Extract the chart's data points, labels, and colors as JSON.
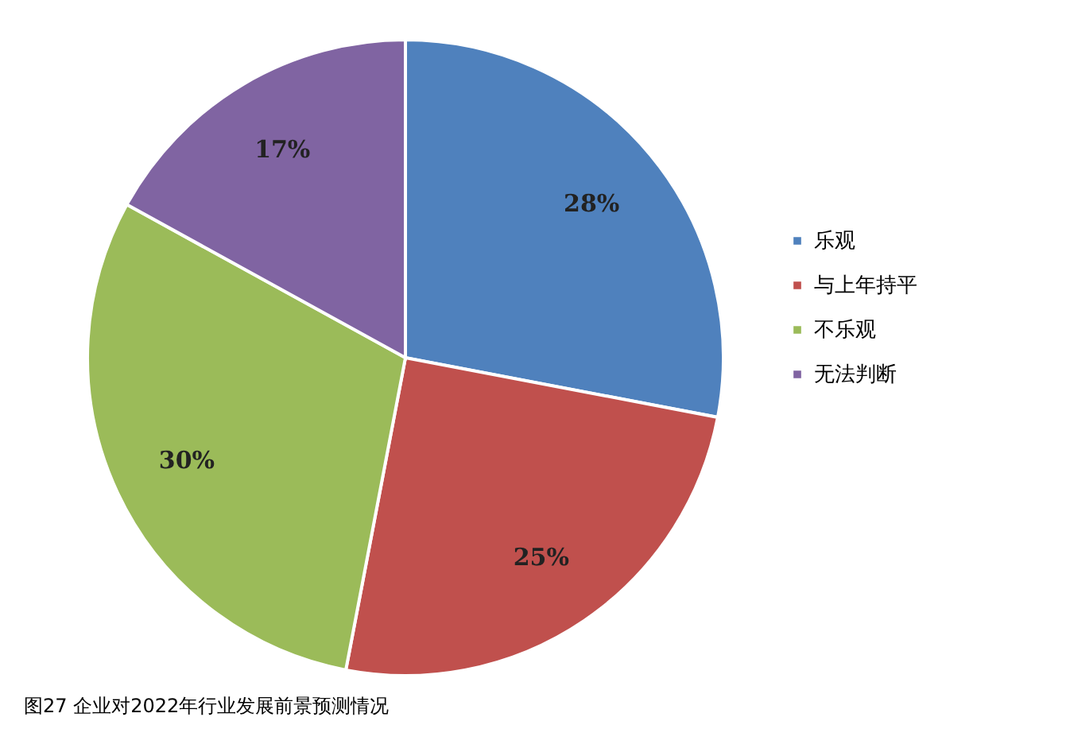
{
  "chart_data": {
    "type": "pie",
    "categories": [
      "乐观",
      "与上年持平",
      "不乐观",
      "无法判断"
    ],
    "values": [
      28,
      25,
      30,
      17
    ],
    "colors": [
      "#4f81bd",
      "#c0504d",
      "#9bbb59",
      "#8064a2"
    ],
    "value_labels": [
      "28%",
      "25%",
      "30%",
      "17%"
    ],
    "legend": "right",
    "annotations": [
      "图27 企业对2022年行业发展前景预测情况"
    ]
  }
}
